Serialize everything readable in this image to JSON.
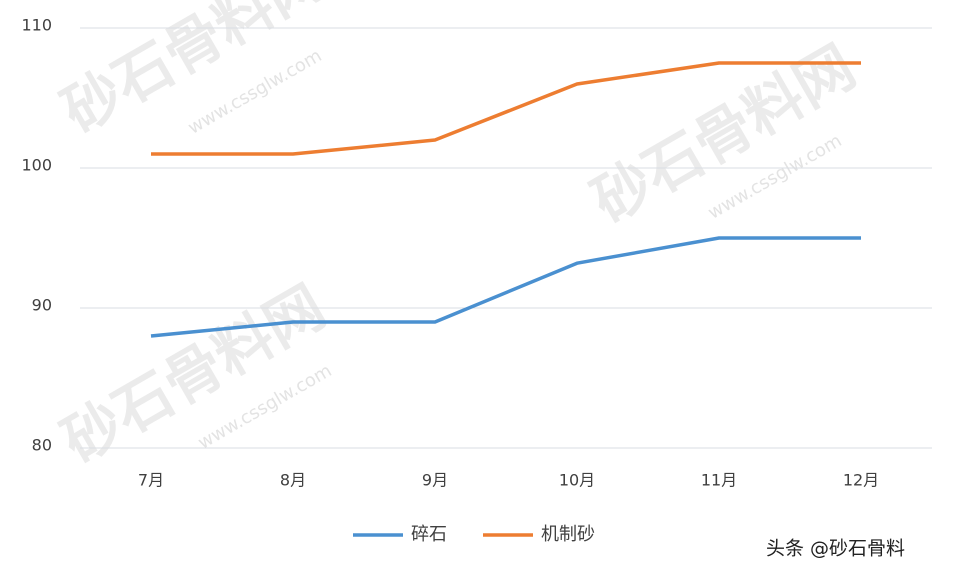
{
  "chart_data": {
    "type": "line",
    "categories": [
      "7月",
      "8月",
      "9月",
      "10月",
      "11月",
      "12月"
    ],
    "series": [
      {
        "name": "碎石",
        "color": "#4a90d0",
        "values": [
          88,
          89,
          89,
          93.2,
          95,
          95
        ]
      },
      {
        "name": "机制砂",
        "color": "#ed7d31",
        "values": [
          101,
          101,
          102,
          106,
          107.5,
          107.5
        ]
      }
    ],
    "ylim": [
      80,
      110
    ],
    "yticks": [
      80,
      90,
      100,
      110
    ],
    "grid": true,
    "legend": "bottom",
    "watermark": "砂石骨料网",
    "watermark_url": "www.cssglw.com",
    "credit": "头条 @砂石骨料"
  }
}
